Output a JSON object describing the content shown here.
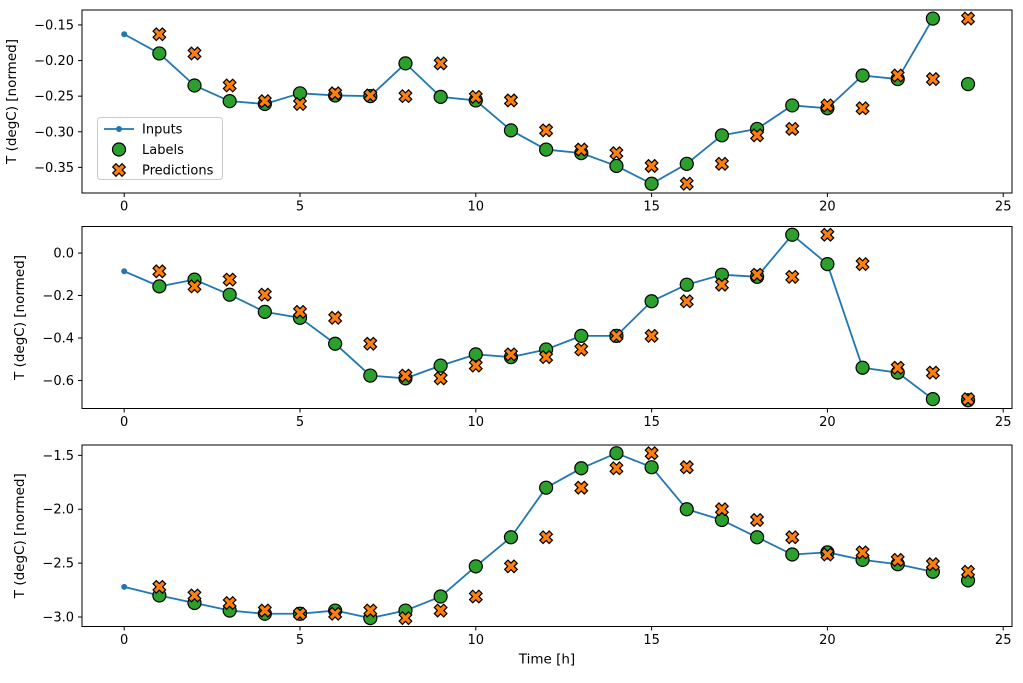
{
  "figure": {
    "xlabel": "Time [h]",
    "ylabel": "T (degC) [normed]",
    "background": "#ffffff",
    "colors": {
      "inputs": "#1f77b4",
      "labels": "#2ca02c",
      "predictions": "#ff7f0e",
      "marker_edge": "#000000",
      "legend_border": "#cccccc"
    },
    "legend": {
      "position": "upper-left-area of subplot 1",
      "entries": [
        {
          "label": "Inputs",
          "marker": "line-dot",
          "color": "#1f77b4"
        },
        {
          "label": "Labels",
          "marker": "circle",
          "color": "#2ca02c"
        },
        {
          "label": "Predictions",
          "marker": "x-cross",
          "color": "#ff7f0e"
        }
      ]
    }
  },
  "chart_data": [
    {
      "type": "line",
      "title": "",
      "xlabel": "",
      "ylabel": "T (degC) [normed]",
      "xlim": [
        -1.2,
        25.25
      ],
      "ylim": [
        -0.386,
        -0.129
      ],
      "grid": false,
      "xticks": [
        0,
        5,
        10,
        15,
        20,
        25
      ],
      "xtick_labels": [
        "0",
        "5",
        "10",
        "15",
        "20",
        "25"
      ],
      "yticks": [
        -0.15,
        -0.2,
        -0.25,
        -0.3,
        -0.35
      ],
      "ytick_labels": [
        "−0.15",
        "−0.20",
        "−0.25",
        "−0.30",
        "−0.35"
      ],
      "series": [
        {
          "name": "Inputs",
          "kind": "line",
          "color": "#1f77b4",
          "x": [
            0,
            1,
            2,
            3,
            4,
            5,
            6,
            7,
            8,
            9,
            10,
            11,
            12,
            13,
            14,
            15,
            16,
            17,
            18,
            19,
            20,
            21,
            22,
            23
          ],
          "y": [
            -0.163,
            -0.19,
            -0.235,
            -0.257,
            -0.261,
            -0.246,
            -0.249,
            -0.25,
            -0.204,
            -0.251,
            -0.256,
            -0.298,
            -0.325,
            -0.33,
            -0.348,
            -0.373,
            -0.345,
            -0.305,
            -0.296,
            -0.263,
            -0.267,
            -0.221,
            -0.226,
            -0.141
          ]
        },
        {
          "name": "Labels",
          "kind": "scatter",
          "marker": "circle",
          "color": "#2ca02c",
          "x": [
            1,
            2,
            3,
            4,
            5,
            6,
            7,
            8,
            9,
            10,
            11,
            12,
            13,
            14,
            15,
            16,
            17,
            18,
            19,
            20,
            21,
            22,
            23,
            24
          ],
          "y": [
            -0.19,
            -0.235,
            -0.257,
            -0.261,
            -0.246,
            -0.249,
            -0.25,
            -0.204,
            -0.251,
            -0.256,
            -0.298,
            -0.325,
            -0.33,
            -0.348,
            -0.373,
            -0.345,
            -0.305,
            -0.296,
            -0.263,
            -0.267,
            -0.221,
            -0.226,
            -0.141,
            -0.233
          ]
        },
        {
          "name": "Predictions",
          "kind": "scatter",
          "marker": "x-cross",
          "color": "#ff7f0e",
          "x": [
            1,
            2,
            3,
            4,
            5,
            6,
            7,
            8,
            9,
            10,
            11,
            12,
            13,
            14,
            15,
            16,
            17,
            18,
            19,
            20,
            21,
            22,
            23,
            24
          ],
          "y": [
            -0.163,
            -0.19,
            -0.235,
            -0.257,
            -0.261,
            -0.246,
            -0.249,
            -0.25,
            -0.204,
            -0.251,
            -0.256,
            -0.298,
            -0.325,
            -0.33,
            -0.348,
            -0.373,
            -0.345,
            -0.305,
            -0.296,
            -0.263,
            -0.267,
            -0.221,
            -0.226,
            -0.141
          ]
        }
      ]
    },
    {
      "type": "line",
      "title": "",
      "xlabel": "",
      "ylabel": "T (degC) [normed]",
      "xlim": [
        -1.2,
        25.25
      ],
      "ylim": [
        -0.732,
        0.125
      ],
      "grid": false,
      "xticks": [
        0,
        5,
        10,
        15,
        20,
        25
      ],
      "xtick_labels": [
        "0",
        "5",
        "10",
        "15",
        "20",
        "25"
      ],
      "yticks": [
        0.0,
        -0.2,
        -0.4,
        -0.6
      ],
      "ytick_labels": [
        "0.0",
        "−0.2",
        "−0.4",
        "−0.6"
      ],
      "series": [
        {
          "name": "Inputs",
          "kind": "line",
          "color": "#1f77b4",
          "x": [
            0,
            1,
            2,
            3,
            4,
            5,
            6,
            7,
            8,
            9,
            10,
            11,
            12,
            13,
            14,
            15,
            16,
            17,
            18,
            19,
            20,
            21,
            22,
            23
          ],
          "y": [
            -0.086,
            -0.157,
            -0.125,
            -0.196,
            -0.277,
            -0.305,
            -0.427,
            -0.577,
            -0.59,
            -0.53,
            -0.477,
            -0.49,
            -0.454,
            -0.39,
            -0.39,
            -0.227,
            -0.149,
            -0.102,
            -0.112,
            0.086,
            -0.052,
            -0.54,
            -0.563,
            -0.688
          ]
        },
        {
          "name": "Labels",
          "kind": "scatter",
          "marker": "circle",
          "color": "#2ca02c",
          "x": [
            1,
            2,
            3,
            4,
            5,
            6,
            7,
            8,
            9,
            10,
            11,
            12,
            13,
            14,
            15,
            16,
            17,
            18,
            19,
            20,
            21,
            22,
            23,
            24
          ],
          "y": [
            -0.157,
            -0.125,
            -0.196,
            -0.277,
            -0.305,
            -0.427,
            -0.577,
            -0.59,
            -0.53,
            -0.477,
            -0.49,
            -0.454,
            -0.39,
            -0.39,
            -0.227,
            -0.149,
            -0.102,
            -0.112,
            0.086,
            -0.052,
            -0.54,
            -0.563,
            -0.688,
            -0.693
          ]
        },
        {
          "name": "Predictions",
          "kind": "scatter",
          "marker": "x-cross",
          "color": "#ff7f0e",
          "x": [
            1,
            2,
            3,
            4,
            5,
            6,
            7,
            8,
            9,
            10,
            11,
            12,
            13,
            14,
            15,
            16,
            17,
            18,
            19,
            20,
            21,
            22,
            23,
            24
          ],
          "y": [
            -0.086,
            -0.157,
            -0.125,
            -0.196,
            -0.277,
            -0.305,
            -0.427,
            -0.577,
            -0.59,
            -0.53,
            -0.477,
            -0.49,
            -0.454,
            -0.39,
            -0.39,
            -0.227,
            -0.149,
            -0.102,
            -0.112,
            0.086,
            -0.052,
            -0.54,
            -0.563,
            -0.688
          ]
        }
      ]
    },
    {
      "type": "line",
      "title": "",
      "xlabel": "Time [h]",
      "ylabel": "T (degC) [normed]",
      "xlim": [
        -1.2,
        25.25
      ],
      "ylim": [
        -3.088,
        -1.404
      ],
      "grid": false,
      "xticks": [
        0,
        5,
        10,
        15,
        20,
        25
      ],
      "xtick_labels": [
        "0",
        "5",
        "10",
        "15",
        "20",
        "25"
      ],
      "yticks": [
        -1.5,
        -2.0,
        -2.5,
        -3.0
      ],
      "ytick_labels": [
        "−1.5",
        "−2.0",
        "−2.5",
        "−3.0"
      ],
      "series": [
        {
          "name": "Inputs",
          "kind": "line",
          "color": "#1f77b4",
          "x": [
            0,
            1,
            2,
            3,
            4,
            5,
            6,
            7,
            8,
            9,
            10,
            11,
            12,
            13,
            14,
            15,
            16,
            17,
            18,
            19,
            20,
            21,
            22,
            23
          ],
          "y": [
            -2.72,
            -2.8,
            -2.87,
            -2.94,
            -2.97,
            -2.97,
            -2.94,
            -3.01,
            -2.94,
            -2.81,
            -2.53,
            -2.26,
            -1.8,
            -1.62,
            -1.48,
            -1.61,
            -2.0,
            -2.1,
            -2.26,
            -2.42,
            -2.4,
            -2.47,
            -2.51,
            -2.58
          ]
        },
        {
          "name": "Labels",
          "kind": "scatter",
          "marker": "circle",
          "color": "#2ca02c",
          "x": [
            1,
            2,
            3,
            4,
            5,
            6,
            7,
            8,
            9,
            10,
            11,
            12,
            13,
            14,
            15,
            16,
            17,
            18,
            19,
            20,
            21,
            22,
            23,
            24
          ],
          "y": [
            -2.8,
            -2.87,
            -2.94,
            -2.97,
            -2.97,
            -2.94,
            -3.01,
            -2.94,
            -2.81,
            -2.53,
            -2.26,
            -1.8,
            -1.62,
            -1.48,
            -1.61,
            -2.0,
            -2.1,
            -2.26,
            -2.42,
            -2.4,
            -2.47,
            -2.51,
            -2.58,
            -2.66
          ]
        },
        {
          "name": "Predictions",
          "kind": "scatter",
          "marker": "x-cross",
          "color": "#ff7f0e",
          "x": [
            1,
            2,
            3,
            4,
            5,
            6,
            7,
            8,
            9,
            10,
            11,
            12,
            13,
            14,
            15,
            16,
            17,
            18,
            19,
            20,
            21,
            22,
            23,
            24
          ],
          "y": [
            -2.72,
            -2.8,
            -2.87,
            -2.94,
            -2.97,
            -2.97,
            -2.94,
            -3.01,
            -2.94,
            -2.81,
            -2.53,
            -2.26,
            -1.8,
            -1.62,
            -1.48,
            -1.61,
            -2.0,
            -2.1,
            -2.26,
            -2.42,
            -2.4,
            -2.47,
            -2.51,
            -2.58
          ]
        }
      ]
    }
  ]
}
